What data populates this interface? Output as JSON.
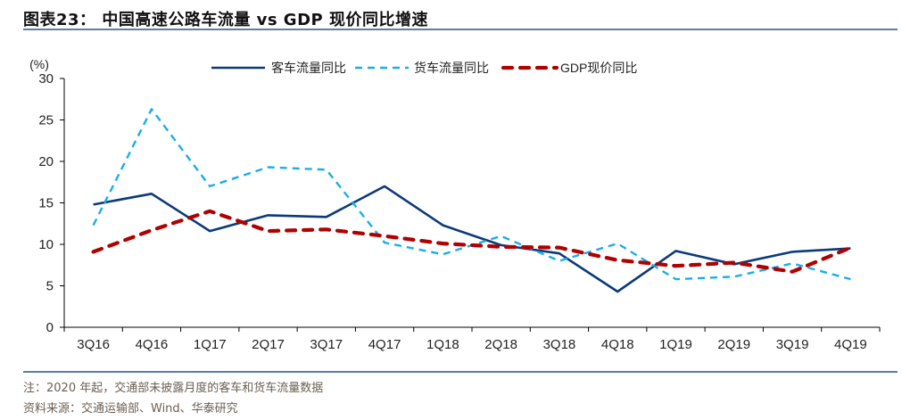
{
  "header": {
    "title": "图表23：  中国高速公路车流量 vs GDP 现价同比增速"
  },
  "footer": {
    "note": "注：2020 年起，交通部未披露月度的客车和货车流量数据",
    "source": "资料来源：交通运输部、Wind、华泰研究"
  },
  "chart_data": {
    "type": "line",
    "title": "中国高速公路车流量 vs GDP 现价同比增速",
    "xlabel": "",
    "ylabel": "(%)",
    "ylim": [
      0,
      30
    ],
    "yticks": [
      0,
      5,
      10,
      15,
      20,
      25,
      30
    ],
    "grid": false,
    "legend_position": "top",
    "categories": [
      "3Q16",
      "4Q16",
      "1Q17",
      "2Q17",
      "3Q17",
      "4Q17",
      "1Q18",
      "2Q18",
      "3Q18",
      "4Q18",
      "1Q19",
      "2Q19",
      "3Q19",
      "4Q19"
    ],
    "series": [
      {
        "name": "客车流量同比",
        "style": "solid",
        "color": "#0b3a7a",
        "values": [
          14.8,
          16.1,
          11.6,
          13.5,
          13.3,
          17.0,
          12.3,
          9.9,
          8.9,
          4.3,
          9.2,
          7.6,
          9.1,
          9.5
        ]
      },
      {
        "name": "货车流量同比",
        "style": "dashed",
        "color": "#1aaee8",
        "values": [
          12.3,
          26.3,
          17.0,
          19.3,
          19.0,
          10.2,
          8.8,
          11.0,
          8.0,
          10.1,
          5.8,
          6.1,
          7.7,
          5.8
        ]
      },
      {
        "name": "GDP现价同比",
        "style": "dashed-bold",
        "color": "#b00000",
        "values": [
          9.1,
          11.7,
          14.0,
          11.6,
          11.8,
          11.0,
          10.1,
          9.7,
          9.6,
          8.1,
          7.4,
          7.8,
          6.7,
          9.6
        ]
      }
    ]
  }
}
